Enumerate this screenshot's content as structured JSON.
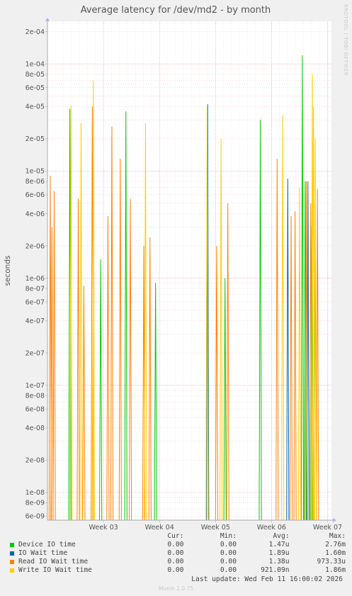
{
  "chart_data": {
    "type": "line",
    "title": "Average latency for /dev/md2 - by month",
    "ylabel": "seconds",
    "yscale": "log",
    "ylim": [
      5.5e-09,
      0.00025
    ],
    "y_ticks": [
      "2e-04",
      "1e-04",
      "8e-05",
      "6e-05",
      "4e-05",
      "2e-05",
      "1e-05",
      "8e-06",
      "6e-06",
      "4e-06",
      "2e-06",
      "1e-06",
      "8e-07",
      "6e-07",
      "4e-07",
      "2e-07",
      "1e-07",
      "8e-08",
      "6e-08",
      "4e-08",
      "2e-08",
      "1e-08",
      "8e-09",
      "6e-09"
    ],
    "x_ticks": [
      "Week 03",
      "Week 04",
      "Week 05",
      "Week 06",
      "Week 07"
    ],
    "grid": true,
    "legend": "bottom",
    "series": [
      {
        "name": "Device IO time",
        "color": "#00cc00",
        "spikes": [
          {
            "week": 2.4,
            "value": 3.8e-05
          },
          {
            "week": 2.95,
            "value": 1.5e-06
          },
          {
            "week": 3.4,
            "value": 3.6e-05
          },
          {
            "week": 3.93,
            "value": 9e-07
          },
          {
            "week": 5.17,
            "value": 1e-06
          },
          {
            "week": 5.8,
            "value": 3e-05
          },
          {
            "week": 6.55,
            "value": 0.00012
          },
          {
            "week": 6.6,
            "value": 8e-06
          },
          {
            "week": 6.72,
            "value": 3e-06
          },
          {
            "week": 6.78,
            "value": 2e-06
          }
        ]
      },
      {
        "name": "IO Wait time",
        "color": "#0066b3",
        "spikes": [
          {
            "week": 4.86,
            "value": 4.2e-05
          },
          {
            "week": 6.29,
            "value": 8.5e-06
          },
          {
            "week": 6.65,
            "value": 8e-06
          }
        ]
      },
      {
        "name": "Read IO Wait time",
        "color": "#ff8000",
        "spikes": [
          {
            "week": 2.05,
            "value": 9e-06
          },
          {
            "week": 2.08,
            "value": 3e-06
          },
          {
            "week": 2.12,
            "value": 6.5e-06
          },
          {
            "week": 2.55,
            "value": 5.5e-06
          },
          {
            "week": 2.65,
            "value": 8.5e-07
          },
          {
            "week": 2.8,
            "value": 4e-05
          },
          {
            "week": 3.08,
            "value": 3.8e-06
          },
          {
            "week": 3.15,
            "value": 2.6e-05
          },
          {
            "week": 3.3,
            "value": 1.3e-05
          },
          {
            "week": 3.48,
            "value": 5.5e-06
          },
          {
            "week": 3.72,
            "value": 2e-06
          },
          {
            "week": 3.83,
            "value": 2.4e-06
          },
          {
            "week": 5.02,
            "value": 2e-06
          },
          {
            "week": 5.22,
            "value": 5e-06
          },
          {
            "week": 6.1,
            "value": 1.3e-05
          },
          {
            "week": 6.35,
            "value": 3.8e-06
          },
          {
            "week": 6.42,
            "value": 4.2e-06
          },
          {
            "week": 6.62,
            "value": 8e-06
          },
          {
            "week": 6.7,
            "value": 5e-06
          },
          {
            "week": 6.82,
            "value": 6.8e-06
          }
        ]
      },
      {
        "name": "Write IO Wait time",
        "color": "#ffcc00",
        "spikes": [
          {
            "week": 2.42,
            "value": 4.1e-05
          },
          {
            "week": 2.6,
            "value": 2.8e-05
          },
          {
            "week": 2.82,
            "value": 7e-05
          },
          {
            "week": 3.75,
            "value": 2.8e-05
          },
          {
            "week": 4.85,
            "value": 4e-05
          },
          {
            "week": 5.1,
            "value": 2e-05
          },
          {
            "week": 6.2,
            "value": 3.3e-05
          },
          {
            "week": 6.5,
            "value": 7e-06
          },
          {
            "week": 6.73,
            "value": 8e-05
          },
          {
            "week": 6.75,
            "value": 4e-05
          },
          {
            "week": 6.78,
            "value": 2e-05
          }
        ]
      }
    ]
  },
  "legend": {
    "headers": {
      "cur": "Cur:",
      "min": "Min:",
      "avg": "Avg:",
      "max": "Max:"
    },
    "rows": [
      {
        "name": "Device IO time",
        "color": "#00cc00",
        "cur": "0.00",
        "min": "0.00",
        "avg": "1.47u",
        "max": "2.76m"
      },
      {
        "name": "IO Wait time",
        "color": "#0066b3",
        "cur": "0.00",
        "min": "0.00",
        "avg": "1.89u",
        "max": "1.60m"
      },
      {
        "name": "Read IO Wait time",
        "color": "#ff8000",
        "cur": "0.00",
        "min": "0.00",
        "avg": "1.38u",
        "max": "973.33u"
      },
      {
        "name": "Write IO Wait time",
        "color": "#ffcc00",
        "cur": "0.00",
        "min": "0.00",
        "avg": "921.09n",
        "max": "1.86m"
      }
    ]
  },
  "last_update": "Last update: Wed Feb 11 16:00:02 2026",
  "munin_version": "Munin 2.0.75",
  "side_credit": "RRDTOOL / TOBI OETIKER"
}
